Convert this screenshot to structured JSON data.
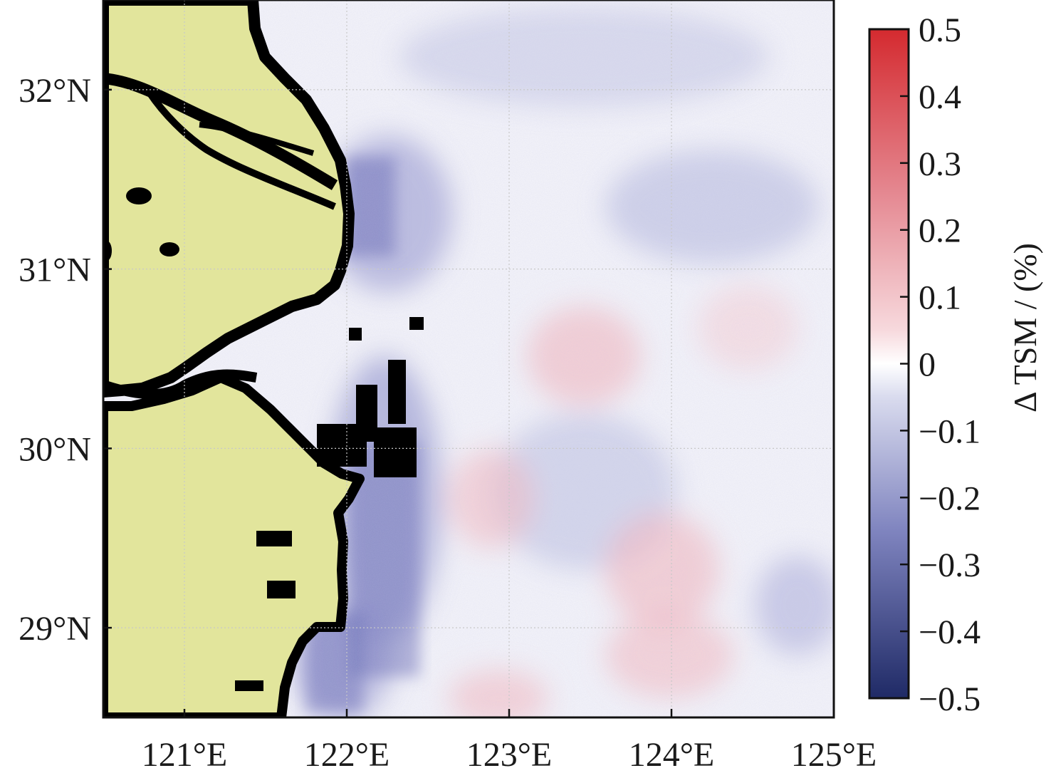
{
  "map": {
    "lon_range": [
      120.5,
      125.0
    ],
    "lat_range": [
      28.5,
      32.5
    ],
    "lon_ticks": [
      121,
      122,
      123,
      124,
      125
    ],
    "lon_labels": [
      "121°E",
      "122°E",
      "123°E",
      "124°E",
      "125°E"
    ],
    "lat_ticks": [
      32,
      31,
      30,
      29
    ],
    "lat_labels": [
      "32°N",
      "31°N",
      "30°N",
      "29°N"
    ],
    "grid": true,
    "land_color": "#e2e59c",
    "coast_color": "#000000",
    "grid_color": "#c8c8c8"
  },
  "colorbar": {
    "title": "Δ TSM / (%)",
    "min": -0.5,
    "max": 0.5,
    "labels": [
      "0.5",
      "0.4",
      "0.3",
      "0.2",
      "0.1",
      "0",
      "−0.1",
      "−0.2",
      "−0.3",
      "−0.4",
      "−0.5"
    ],
    "colors": {
      "high": "#d42a2f",
      "mid": "#ffffff",
      "low": "#1f2a66"
    },
    "placement": "right"
  }
}
